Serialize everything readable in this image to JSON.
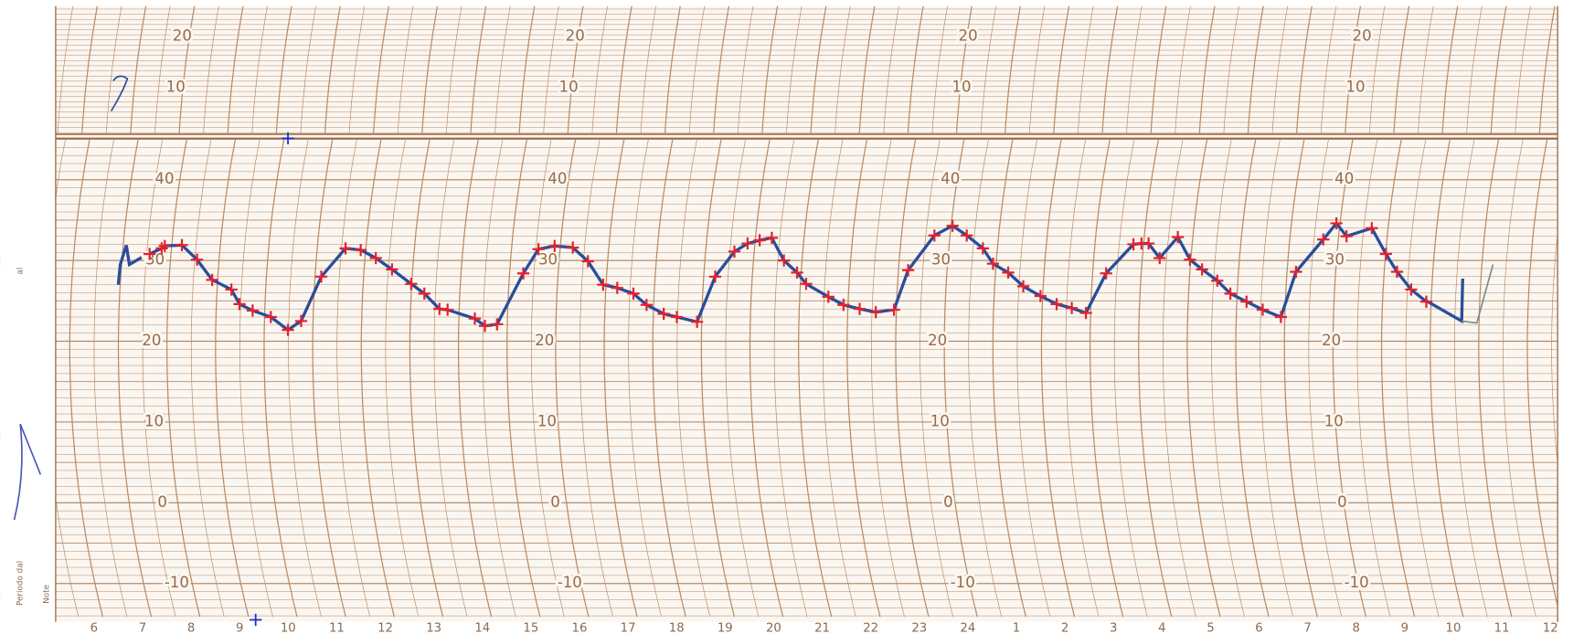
{
  "top_scale": {
    "labels": [
      "20",
      "10"
    ]
  },
  "main_scale": {
    "labels": [
      "40",
      "30",
      "20",
      "10",
      "0",
      "-10"
    ]
  },
  "hours": {
    "labels": [
      "6",
      "7",
      "8",
      "9",
      "10",
      "11",
      "12",
      "13",
      "14",
      "15",
      "16",
      "17",
      "18",
      "19",
      "20",
      "21",
      "22",
      "23",
      "24",
      "1",
      "2",
      "3",
      "4",
      "5",
      "6",
      "7",
      "8",
      "9",
      "10",
      "11",
      "12"
    ]
  },
  "margin": {
    "period_from": "Periodo dal",
    "period_to": "al",
    "notes": "Note"
  },
  "trace": {
    "readings": [
      30.8,
      31.5,
      31.8,
      31.9,
      30.1,
      27.6,
      26.4,
      24.6,
      23.8,
      23.0,
      21.4,
      22.5,
      28.0,
      31.5,
      31.3,
      30.3,
      28.9,
      27.1,
      25.9,
      24.0,
      23.9,
      22.8,
      21.9,
      22.1,
      28.4,
      31.4,
      31.8,
      31.6,
      29.9,
      27.0,
      26.6,
      25.9,
      24.5,
      23.4,
      23.0,
      22.4,
      28.0,
      31.1,
      32.1,
      32.5,
      32.8,
      30.0,
      28.5,
      27.1,
      25.5,
      24.5,
      24.0,
      23.6,
      23.9,
      28.8,
      33.1,
      34.3,
      33.1,
      31.5,
      29.6,
      28.5,
      26.8,
      25.6,
      24.6,
      24.1,
      23.5,
      28.4,
      32.0,
      32.1,
      32.1,
      30.3,
      32.9,
      30.1,
      28.9,
      27.5,
      25.9,
      24.9,
      23.9,
      23.0,
      28.6,
      32.6,
      34.6,
      33.0,
      34.0,
      30.8,
      28.6,
      26.4,
      24.9
    ]
  }
}
